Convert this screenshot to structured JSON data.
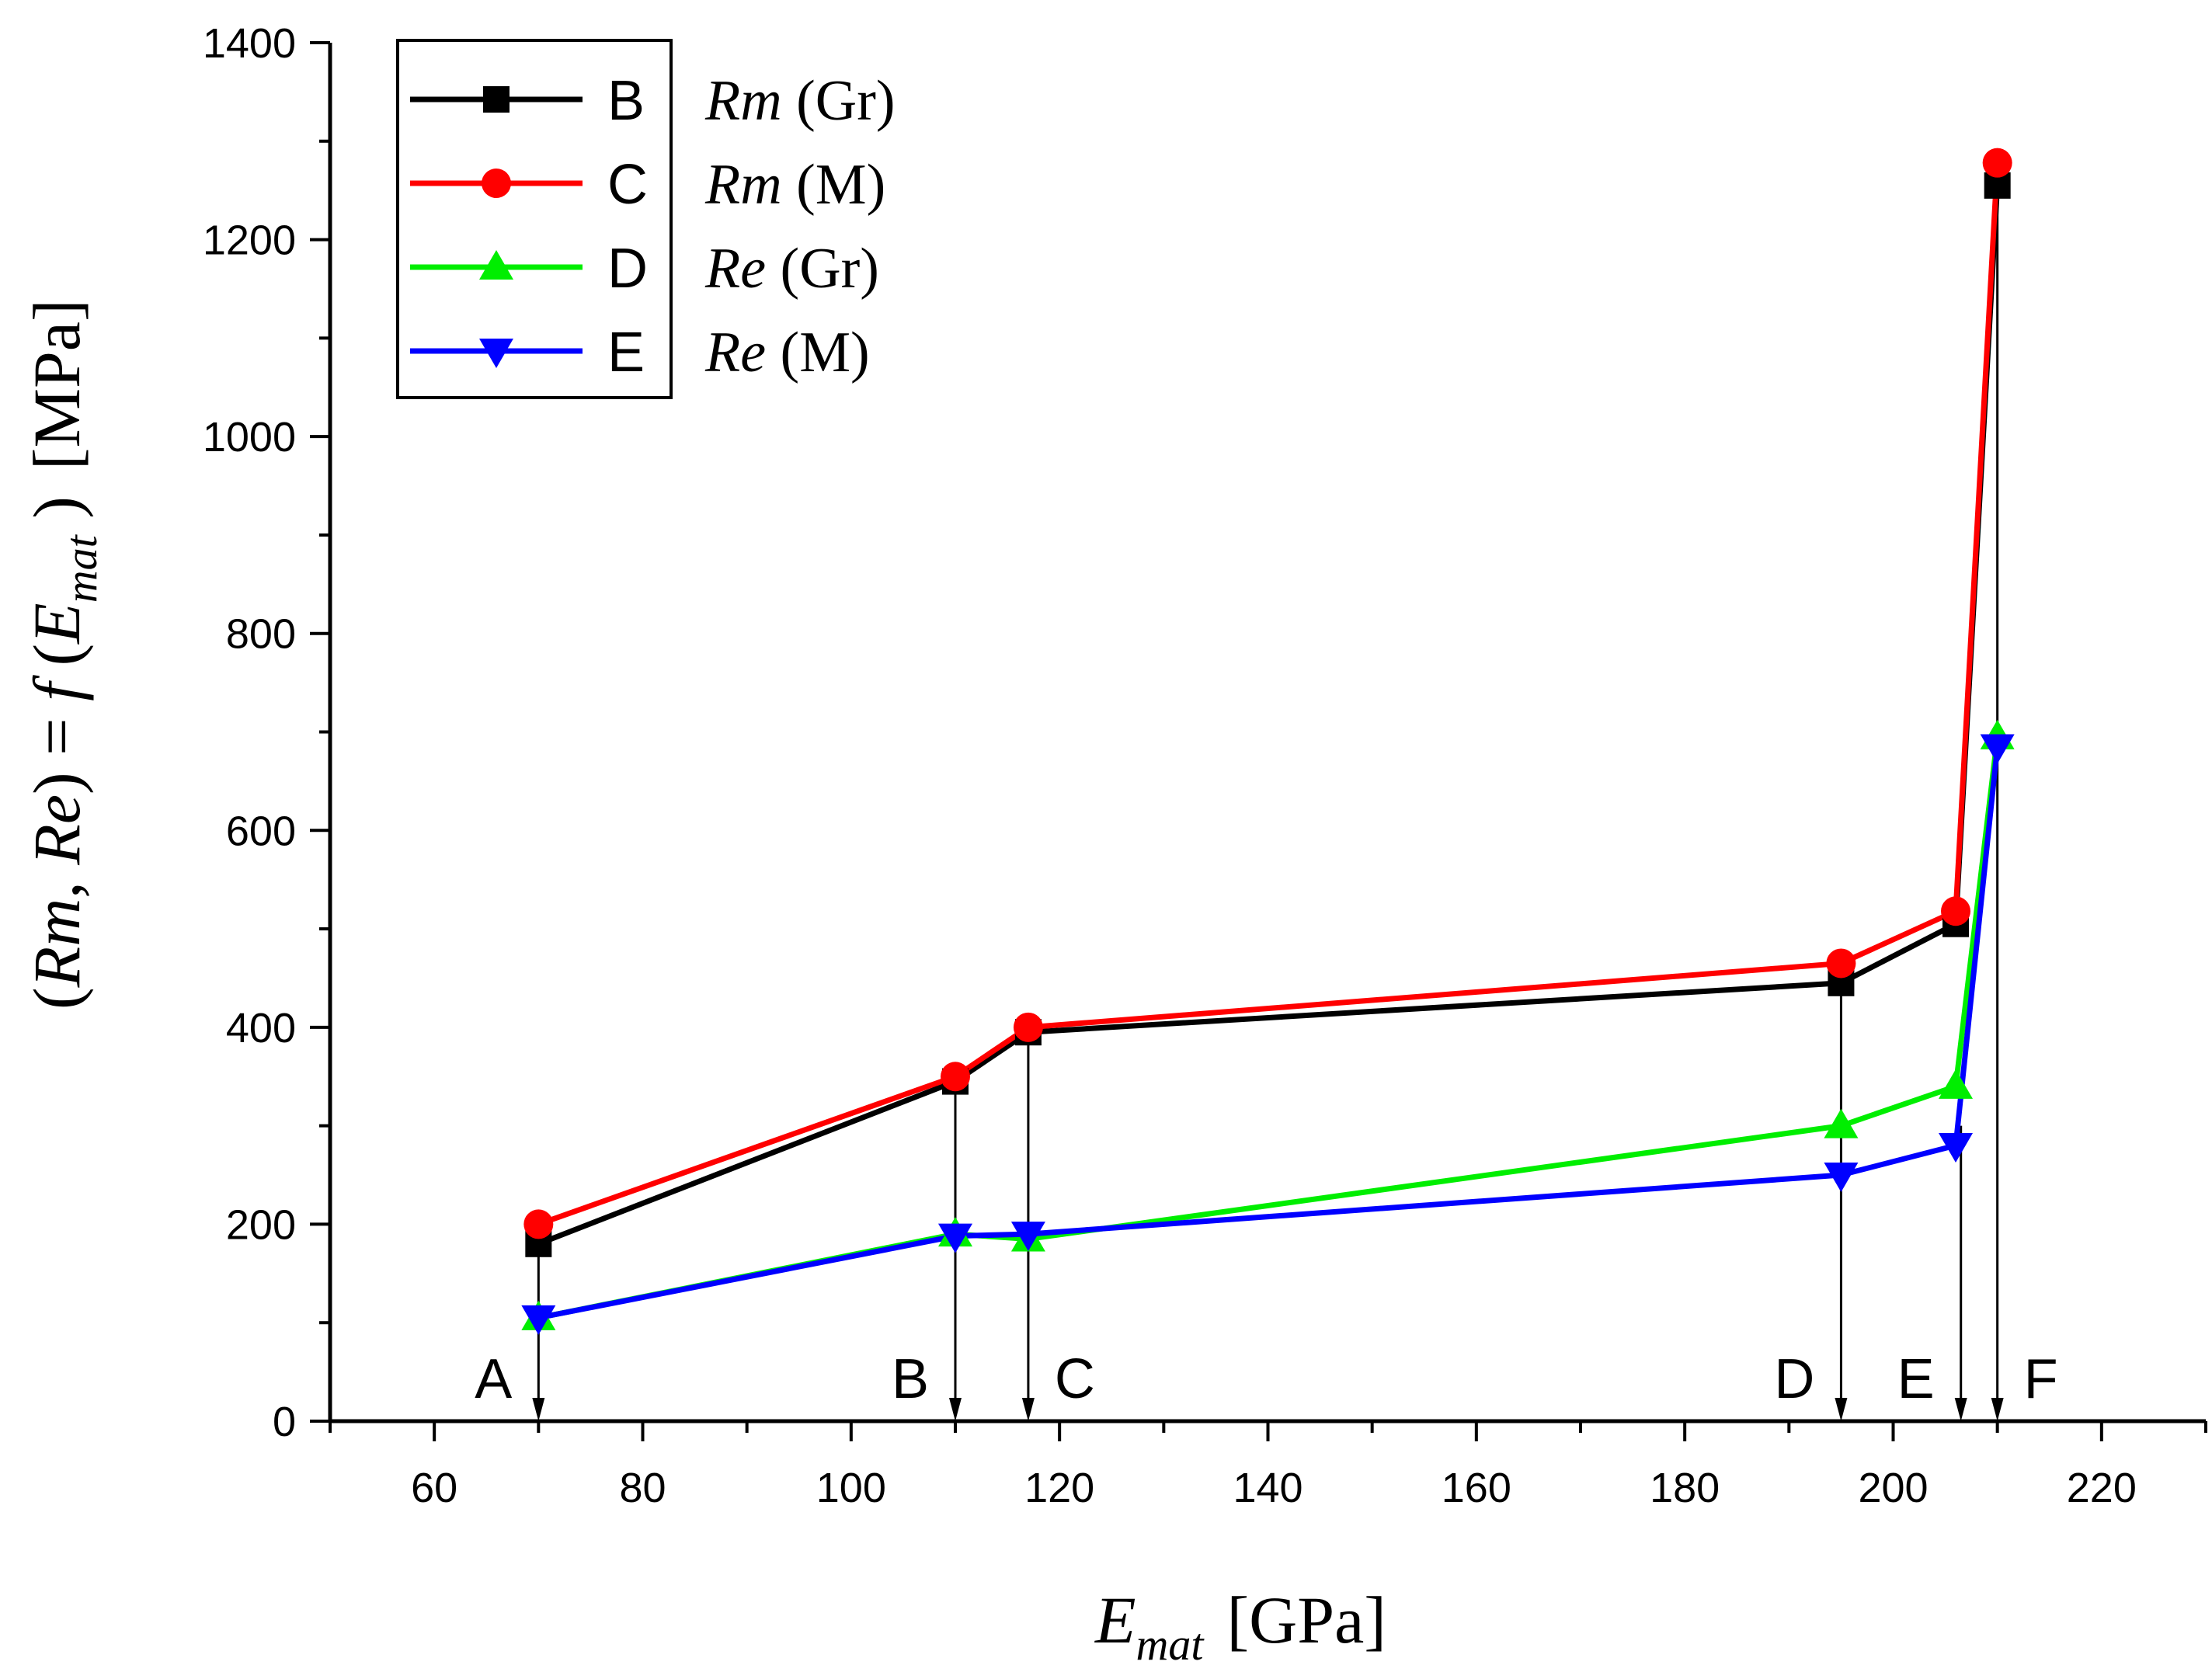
{
  "chart_data": {
    "type": "line",
    "xlabel": {
      "main": "E",
      "sub": "mat",
      "unit": "[GPa]"
    },
    "ylabel": {
      "prefix": "(",
      "rm": "Rm",
      "comma": ", ",
      "re": "Re",
      "mid": ") = ",
      "f": "f",
      "open": " (",
      "e": "E",
      "sub": "mat",
      "close": " )",
      "unit": "[MPa]"
    },
    "xlim": [
      50,
      230
    ],
    "ylim": [
      0,
      1400
    ],
    "x_ticks": [
      60,
      80,
      100,
      120,
      140,
      160,
      180,
      200,
      220
    ],
    "y_ticks": [
      0,
      200,
      400,
      600,
      800,
      1000,
      1200,
      1400
    ],
    "x_minor_step": 10,
    "y_minor_step": 100,
    "grid": false,
    "legend_position": "top-left",
    "series": [
      {
        "id": "B",
        "name": "B",
        "desc_italic": "Rm",
        "desc_rest": "(Gr)",
        "color": "#000000",
        "marker": "square",
        "x": [
          70,
          110,
          117,
          195,
          206,
          210
        ],
        "values": [
          180,
          345,
          395,
          445,
          505,
          1255
        ]
      },
      {
        "id": "C",
        "name": "C",
        "desc_italic": "Rm",
        "desc_rest": "(M)",
        "color": "#ff0000",
        "marker": "circle",
        "x": [
          70,
          110,
          117,
          195,
          206,
          210
        ],
        "values": [
          200,
          350,
          400,
          465,
          518,
          1278
        ]
      },
      {
        "id": "D",
        "name": "D",
        "desc_italic": "Re",
        "desc_rest": "(Gr)",
        "color": "#00ee00",
        "marker": "triangle-up",
        "x": [
          70,
          110,
          117,
          195,
          206,
          210
        ],
        "values": [
          105,
          190,
          185,
          300,
          340,
          695
        ]
      },
      {
        "id": "E",
        "name": "E",
        "desc_italic": "Re",
        "desc_rest": "(M)",
        "color": "#0000ff",
        "marker": "triangle-down",
        "x": [
          70,
          110,
          117,
          195,
          206,
          210
        ],
        "values": [
          105,
          188,
          190,
          250,
          280,
          685
        ]
      }
    ],
    "vertical_markers": [
      {
        "label": "A",
        "x": 70,
        "from": 200,
        "side": "left"
      },
      {
        "label": "B",
        "x": 110,
        "from": 350,
        "side": "left"
      },
      {
        "label": "C",
        "x": 117,
        "from": 400,
        "side": "right"
      },
      {
        "label": "D",
        "x": 195,
        "from": 465,
        "side": "left"
      },
      {
        "label": "E",
        "x": 206.5,
        "from": 300,
        "side": "left"
      },
      {
        "label": "F",
        "x": 210,
        "from": 1270,
        "side": "right"
      }
    ]
  }
}
